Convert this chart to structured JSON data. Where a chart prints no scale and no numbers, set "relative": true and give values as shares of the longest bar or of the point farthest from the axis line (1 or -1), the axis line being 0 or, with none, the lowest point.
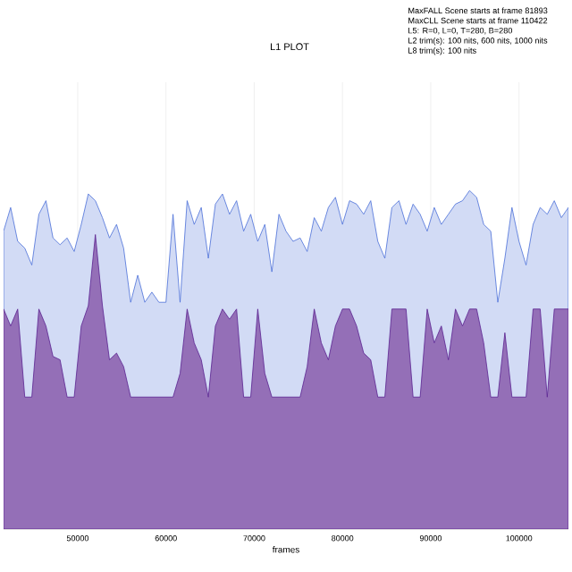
{
  "chart_data": {
    "type": "area",
    "title": "L1 PLOT",
    "xlabel": "frames",
    "relative": true,
    "annotations": [
      "MaxFALL Scene starts at frame 81893",
      "MaxCLL Scene starts at frame 110422",
      "L5: R=0, L=0, T=280, B=280",
      "L2 trim(s): 100 nits, 600 nits, 1000 nits",
      "L8 trim(s): 100 nits"
    ],
    "x": [
      41600,
      42400,
      43200,
      44000,
      44800,
      45600,
      46400,
      47200,
      48000,
      48800,
      49600,
      50400,
      51200,
      52000,
      52800,
      53600,
      54400,
      55200,
      56000,
      56800,
      57600,
      58400,
      59200,
      60000,
      60800,
      61600,
      62400,
      63200,
      64000,
      64800,
      65600,
      66400,
      67200,
      68000,
      68800,
      69600,
      70400,
      71200,
      72000,
      72800,
      73600,
      74400,
      75200,
      76000,
      76800,
      77600,
      78400,
      79200,
      80000,
      80800,
      81600,
      82400,
      83200,
      84000,
      84800,
      85600,
      86400,
      87200,
      88000,
      88800,
      89600,
      90400,
      91200,
      92000,
      92800,
      93600,
      94400,
      95200,
      96000,
      96800,
      97600,
      98400,
      99200,
      100000,
      100800,
      101600,
      102400,
      103200,
      104000,
      104800,
      105600
    ],
    "series": [
      {
        "color": "#4a6fd8",
        "values": [
          0.88,
          0.95,
          0.85,
          0.83,
          0.78,
          0.93,
          0.97,
          0.86,
          0.84,
          0.86,
          0.82,
          0.9,
          0.99,
          0.97,
          0.92,
          0.86,
          0.9,
          0.83,
          0.67,
          0.75,
          0.67,
          0.7,
          0.67,
          0.67,
          0.93,
          0.67,
          0.97,
          0.9,
          0.95,
          0.8,
          0.96,
          0.99,
          0.93,
          0.97,
          0.88,
          0.93,
          0.85,
          0.9,
          0.76,
          0.93,
          0.88,
          0.85,
          0.86,
          0.82,
          0.92,
          0.88,
          0.95,
          0.98,
          0.9,
          0.97,
          0.96,
          0.93,
          0.97,
          0.85,
          0.8,
          0.95,
          0.97,
          0.9,
          0.96,
          0.93,
          0.88,
          0.95,
          0.9,
          0.93,
          0.96,
          0.97,
          1.0,
          0.98,
          0.9,
          0.88,
          0.67,
          0.8,
          0.95,
          0.85,
          0.78,
          0.9,
          0.95,
          0.93,
          0.97,
          0.92,
          0.95
        ]
      },
      {
        "color": "#5b2290",
        "values": [
          0.65,
          0.6,
          0.65,
          0.39,
          0.39,
          0.65,
          0.6,
          0.51,
          0.5,
          0.39,
          0.39,
          0.6,
          0.66,
          0.87,
          0.66,
          0.5,
          0.52,
          0.48,
          0.39,
          0.39,
          0.39,
          0.39,
          0.39,
          0.39,
          0.39,
          0.46,
          0.65,
          0.55,
          0.5,
          0.39,
          0.6,
          0.65,
          0.62,
          0.65,
          0.39,
          0.39,
          0.65,
          0.46,
          0.39,
          0.39,
          0.39,
          0.39,
          0.39,
          0.48,
          0.65,
          0.55,
          0.5,
          0.6,
          0.65,
          0.65,
          0.6,
          0.52,
          0.5,
          0.39,
          0.39,
          0.65,
          0.65,
          0.65,
          0.39,
          0.39,
          0.65,
          0.55,
          0.6,
          0.5,
          0.65,
          0.6,
          0.65,
          0.65,
          0.55,
          0.39,
          0.39,
          0.58,
          0.39,
          0.39,
          0.39,
          0.65,
          0.65,
          0.39,
          0.65,
          0.65,
          0.65
        ]
      }
    ],
    "xlim": [
      41600,
      105600
    ],
    "xticks": [
      50000,
      60000,
      70000,
      80000,
      90000,
      100000
    ],
    "grid": "x"
  }
}
